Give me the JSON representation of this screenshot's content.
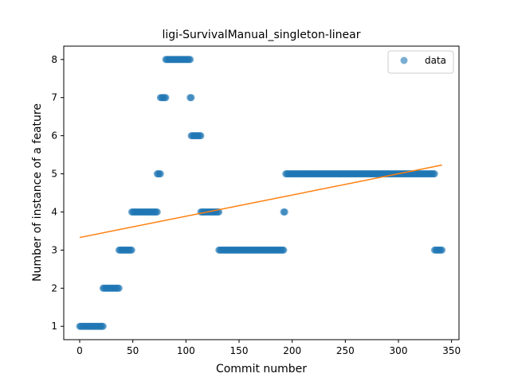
{
  "chart_data": {
    "type": "scatter",
    "title": "ligi-SurvivalManual_singleton-linear",
    "xlabel": "Commit number",
    "ylabel": "Number of instance of a feature",
    "xlim": [
      -15,
      357
    ],
    "ylim": [
      0.65,
      8.35
    ],
    "xticks": [
      0,
      50,
      100,
      150,
      200,
      250,
      300,
      350
    ],
    "yticks": [
      1,
      2,
      3,
      4,
      5,
      6,
      7,
      8
    ],
    "grid": false,
    "legend": {
      "location": "top-right",
      "entries": [
        "data"
      ]
    },
    "colors": {
      "data": "#1f77b4",
      "fit": "#ff7f0e"
    },
    "series": [
      {
        "name": "data",
        "kind": "scatter",
        "segments": [
          {
            "x_start": 0,
            "x_end": 22,
            "y": 1
          },
          {
            "x_start": 22,
            "x_end": 37,
            "y": 2
          },
          {
            "x_start": 37,
            "x_end": 49,
            "y": 3
          },
          {
            "x_start": 49,
            "x_end": 73,
            "y": 4
          },
          {
            "x_start": 73,
            "x_end": 76,
            "y": 5
          },
          {
            "x_start": 76,
            "x_end": 81,
            "y": 7
          },
          {
            "x_start": 81,
            "x_end": 104,
            "y": 8
          },
          {
            "x_start": 104,
            "x_end": 105,
            "y": 7
          },
          {
            "x_start": 105,
            "x_end": 114,
            "y": 6
          },
          {
            "x_start": 114,
            "x_end": 131,
            "y": 4
          },
          {
            "x_start": 131,
            "x_end": 192,
            "y": 3
          },
          {
            "x_start": 192,
            "x_end": 193,
            "y": 4
          },
          {
            "x_start": 194,
            "x_end": 334,
            "y": 5
          },
          {
            "x_start": 334,
            "x_end": 341,
            "y": 3
          }
        ]
      },
      {
        "name": "",
        "kind": "line",
        "x": [
          0,
          341
        ],
        "y": [
          3.33,
          5.23
        ]
      }
    ]
  }
}
